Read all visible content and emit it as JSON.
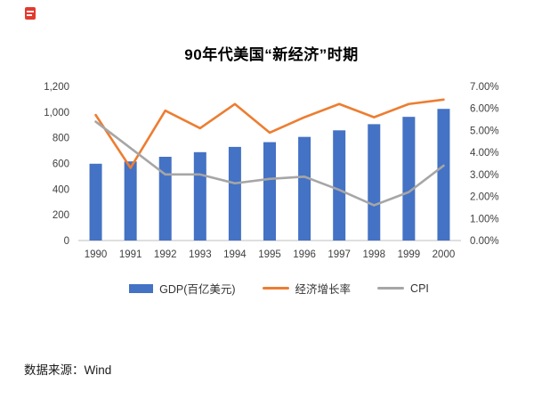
{
  "page": {
    "footer_source": "数据来源：Wind"
  },
  "chart_data": {
    "type": "bar",
    "subtype": "combo-bar-line",
    "title": "90年代美国“新经济”时期",
    "categories": [
      "1990",
      "1991",
      "1992",
      "1993",
      "1994",
      "1995",
      "1996",
      "1997",
      "1998",
      "1999",
      "2000"
    ],
    "series": [
      {
        "name": "GDP(百亿美元)",
        "type": "bar",
        "axis": "left",
        "color": "#4472C4",
        "values": [
          598,
          616,
          652,
          688,
          729,
          766,
          807,
          858,
          906,
          963,
          1025
        ]
      },
      {
        "name": "经济增长率",
        "type": "line",
        "axis": "right",
        "color": "#ED7D31",
        "values": [
          5.7,
          3.3,
          5.9,
          5.1,
          6.2,
          4.9,
          5.6,
          6.2,
          5.6,
          6.2,
          6.4
        ]
      },
      {
        "name": "CPI",
        "type": "line",
        "axis": "right",
        "color": "#A6A6A6",
        "values": [
          5.4,
          4.2,
          3.0,
          3.0,
          2.6,
          2.8,
          2.9,
          2.3,
          1.6,
          2.2,
          3.4
        ]
      }
    ],
    "left_axis": {
      "min": 0,
      "max": 1200,
      "step": 200,
      "labels": [
        "0",
        "200",
        "400",
        "600",
        "800",
        "1,000",
        "1,200"
      ]
    },
    "right_axis": {
      "min": 0,
      "max": 7,
      "step": 1,
      "labels": [
        "0.00%",
        "1.00%",
        "2.00%",
        "3.00%",
        "4.00%",
        "5.00%",
        "6.00%",
        "7.00%"
      ]
    },
    "xlabel": "",
    "ylabel": "",
    "grid": false,
    "legend_position": "bottom"
  }
}
